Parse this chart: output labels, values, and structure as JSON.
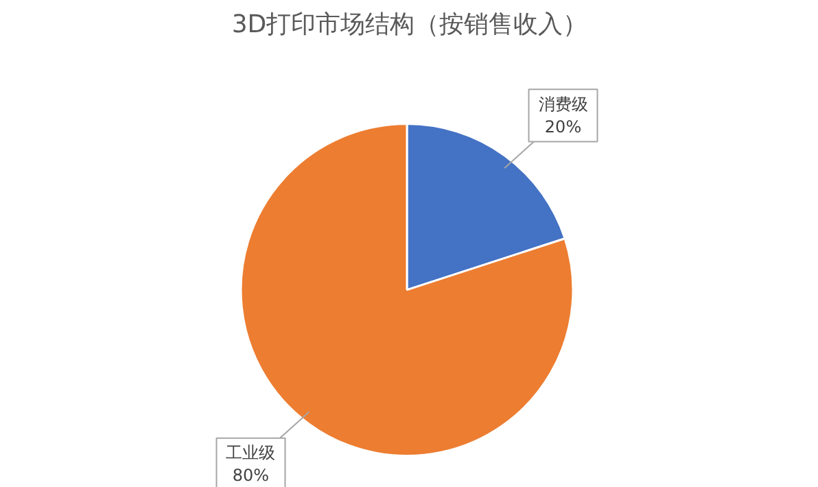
{
  "chart_data": {
    "type": "pie",
    "title": "3D打印市场结构（按销售收入）",
    "categories": [
      "消费级",
      "工业级"
    ],
    "values": [
      20,
      80
    ],
    "colors": [
      "#4472c4",
      "#ed7d31"
    ],
    "value_labels": [
      "20%",
      "80%"
    ]
  }
}
